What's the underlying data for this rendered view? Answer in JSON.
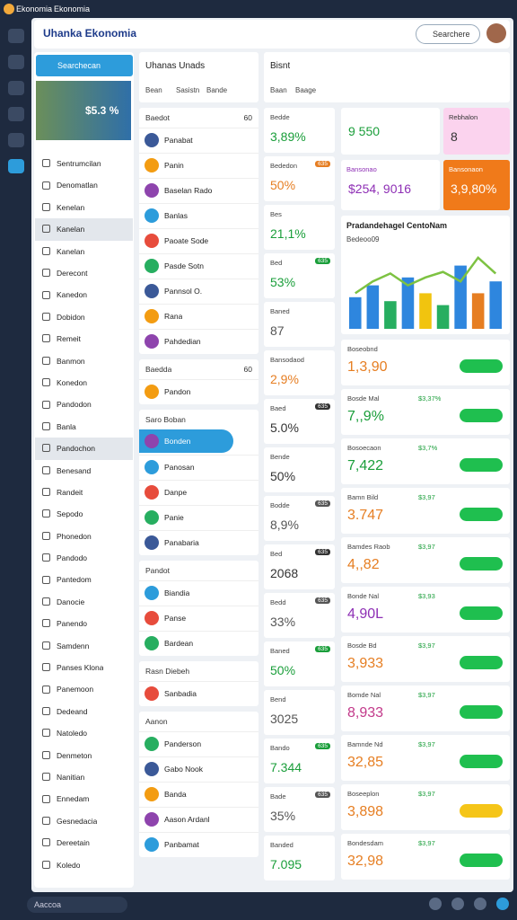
{
  "tabs": [
    "Ekonomia",
    "Ekonomia"
  ],
  "header": {
    "title": "Uhanka Ekonomia",
    "search": "Searchere"
  },
  "sidebar": {
    "button": "Searchecan",
    "banner": "$5.3 %",
    "highlighted": [
      3,
      13
    ],
    "items": [
      "Sentrumcilan",
      "Denomatlan",
      "Kenelan",
      "Kanelan",
      "Kanelan",
      "Derecont",
      "Kanedon",
      "Dobidon",
      "Remeit",
      "Banmon",
      "Konedon",
      "Pandodon",
      "Banla",
      "Pandochon",
      "Benesand",
      "Randeit",
      "Sepodo",
      "Phonedon",
      "Pandodo",
      "Pantedom",
      "Danocie",
      "Panendo",
      "Samdenn",
      "Panses Klona",
      "Panemoon",
      "Dedeand",
      "Natoledo",
      "Denmeton",
      "Nanitian",
      "Ennedam",
      "Gesnedacia",
      "Dereetain",
      "Koledo"
    ]
  },
  "column_top": {
    "left": "Uhanas Unads",
    "left_tabs": [
      "Bean",
      "Sasistn",
      "Bande"
    ],
    "right": "Bisnt",
    "right_tabs": [
      "Baan",
      "Baage"
    ]
  },
  "lists": [
    {
      "title": "Baedot",
      "right": "60",
      "rows": [
        "Panabat",
        "Panin",
        "Baselan Rado",
        "Banlas",
        "Paoate Sode",
        "Pasde Sotn",
        "Pannsol O.",
        "Rana",
        "Pahdedian"
      ]
    },
    {
      "title": "Baedda",
      "right": "60",
      "rows": [
        "Pandon"
      ]
    },
    {
      "title": "Saro Boban",
      "highlight": 0,
      "rows": [
        "Bonden",
        "Panosan",
        "Danpe",
        "Panie",
        "Panabaria"
      ]
    },
    {
      "title": "Pandot",
      "rows": [
        "Biandia",
        "Panse",
        "Bardean"
      ]
    },
    {
      "title": "Rasn Diebeh",
      "rows": [
        "Sanbadia"
      ]
    },
    {
      "title": "Aanon",
      "rows": [
        "Panderson",
        "Gabo Nook",
        "Banda",
        "Aason Ardanl",
        "Panbamat"
      ]
    }
  ],
  "stats": [
    {
      "label": "Bedde",
      "value": "3,89%",
      "color": "#1a9e3a"
    },
    {
      "label": "Bededon",
      "value": "50%",
      "color": "#e67e22",
      "badge": "635"
    },
    {
      "label": "Bes",
      "value": "21,1%",
      "color": "#1a9e3a"
    },
    {
      "label": "Bed",
      "value": "53%",
      "color": "#1a9e3a",
      "badge": "635"
    },
    {
      "label": "Baned",
      "value": "87",
      "color": "#555555"
    },
    {
      "label": "Bansodaod",
      "value": "2,9%",
      "color": "#e67e22"
    },
    {
      "label": "Baed",
      "value": "5.0%",
      "color": "#333333",
      "badge": "635"
    },
    {
      "label": "Bende",
      "value": "50%",
      "color": "#333333"
    },
    {
      "label": "Bodde",
      "value": "8,9%",
      "color": "#555555",
      "badge": "635"
    },
    {
      "label": "Bed",
      "value": "2068",
      "color": "#333333",
      "badge": "635"
    },
    {
      "label": "Bedd",
      "value": "33%",
      "color": "#555555",
      "badge": "635"
    },
    {
      "label": "Baned",
      "value": "50%",
      "color": "#1a9e3a",
      "badge": "635"
    },
    {
      "label": "Bend",
      "value": "3025",
      "color": "#555555"
    },
    {
      "label": "Bando",
      "value": "7.344",
      "color": "#1a9e3a",
      "badge": "635"
    },
    {
      "label": "Bade",
      "value": "35%",
      "color": "#555555",
      "badge": "635"
    },
    {
      "label": "Banded",
      "value": "7.095",
      "color": "#1a9e3a"
    }
  ],
  "kpi_top": [
    {
      "value": "9 550",
      "color": "#1a9e3a",
      "bg": "#ffffff"
    },
    {
      "label": "Rebhalon",
      "value": "8",
      "color": "#333333",
      "bg": "#fbd3ee"
    },
    {
      "label": "Bansonao",
      "value": "$254, 9016",
      "color": "#8e2fb5",
      "bg": "#ffffff"
    },
    {
      "label": "Bansonaon",
      "value": "3,9,80%",
      "color": "#ffffff",
      "bg": "#f07a1a"
    }
  ],
  "chart": {
    "title": "Pradandehagel CentoNam",
    "subtitle": "Bedeoo09",
    "ylim": [
      0,
      100
    ],
    "bars": [
      40,
      55,
      35,
      65,
      45,
      30,
      80,
      45,
      60
    ],
    "colors": [
      "#2e86de",
      "#2e86de",
      "#27ae60",
      "#2e86de",
      "#f1c40f",
      "#27ae60",
      "#2e86de",
      "#e67e22",
      "#2e86de"
    ],
    "line": [
      45,
      60,
      70,
      55,
      65,
      72,
      60,
      90,
      70
    ],
    "line_color": "#7dc242"
  },
  "cards": [
    {
      "label": "Boseobnd",
      "value": "1,3,90",
      "color": "#e67e22",
      "pill": "#1fbf4f"
    },
    {
      "label": "Bosde Mal",
      "value": "7,,9%",
      "color": "#1a9e3a",
      "right": "$3,37%",
      "pill": "#1fbf4f"
    },
    {
      "label": "Bosoecaon",
      "value": "7,422",
      "color": "#1a9e3a",
      "right": "$3,7%",
      "pill": "#1fbf4f"
    },
    {
      "label": "Bamn Bild",
      "value": "3.747",
      "color": "#e67e22",
      "right": "$3,97",
      "pill": "#1fbf4f"
    },
    {
      "label": "Bamdes Raob",
      "value": "4,,82",
      "color": "#e67e22",
      "right": "$3,97",
      "pill": "#1fbf4f"
    },
    {
      "label": "Bonde Nal",
      "value": "4,90L",
      "color": "#8e2fb5",
      "right": "$3,93",
      "pill": "#1fbf4f"
    },
    {
      "label": "Bosde Bd",
      "value": "3,933",
      "color": "#e67e22",
      "right": "$3,97",
      "pill": "#1fbf4f"
    },
    {
      "label": "Bomde Nal",
      "value": "8,933",
      "color": "#c2398a",
      "right": "$3,97",
      "pill": "#1fbf4f"
    },
    {
      "label": "Bamnde Nd",
      "value": "32,85",
      "color": "#e67e22",
      "right": "$3,97",
      "pill": "#1fbf4f"
    },
    {
      "label": "Boseeplon",
      "value": "3,898",
      "color": "#e67e22",
      "right": "$3,97",
      "pill": "#f5c518"
    },
    {
      "label": "Bondesdam",
      "value": "32,98",
      "color": "#e67e22",
      "right": "$3,97",
      "pill": "#1fbf4f"
    }
  ],
  "footer": {
    "search": "Aaccoa"
  }
}
